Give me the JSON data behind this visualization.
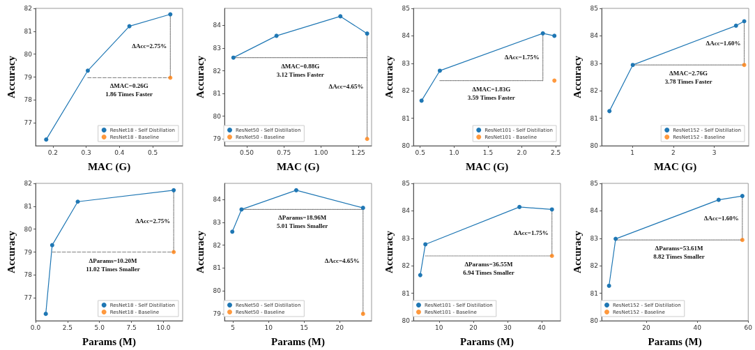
{
  "chart_data": [
    {
      "type": "line",
      "xlabel": "MAC (G)",
      "ylabel": "Accuracy",
      "xlim": [
        0.148,
        0.59
      ],
      "ylim": [
        76,
        82
      ],
      "xticks": [
        0.2,
        0.3,
        0.4,
        0.5
      ],
      "yticks": [
        77,
        78,
        79,
        80,
        81,
        82
      ],
      "grid": false,
      "legend": "bottom right",
      "marker": "circle",
      "series": [
        {
          "name": "ResNet18 - Self Distillation",
          "color": "#1f77b4",
          "x": [
            0.18,
            0.305,
            0.43,
            0.553
          ],
          "values": [
            76.27,
            79.28,
            81.22,
            81.74
          ]
        },
        {
          "type": "scatter",
          "name": "ResNet18 - Baseline",
          "color": "#ff7f0e",
          "x": [
            0.553
          ],
          "values": [
            78.97
          ]
        },
        {
          "color": "#808080",
          "line_style": "dashed",
          "marker": "none",
          "x": [
            0.305,
            0.553
          ],
          "values": [
            78.97,
            78.97
          ]
        },
        {
          "color": "#808080",
          "line_style": "dotted",
          "marker": "none",
          "x": [
            0.553,
            0.553
          ],
          "values": [
            81.74,
            78.97
          ]
        }
      ],
      "annotations": [
        "ΔMAC=0.26G\n1.86 Times Faster",
        "ΔAcc=2.75%"
      ]
    },
    {
      "type": "line",
      "xlabel": "MAC (G)",
      "ylabel": "Accuracy",
      "xlim": [
        0.35,
        1.34
      ],
      "ylim": [
        78.7,
        84.75
      ],
      "xticks": [
        {
          "value": 0.5,
          "label": "0.50"
        },
        0.75,
        {
          "value": 1,
          "label": "1.00"
        },
        1.25
      ],
      "yticks": [
        79,
        80,
        81,
        82,
        83,
        84
      ],
      "grid": false,
      "legend": "bottom left",
      "marker": "circle",
      "series": [
        {
          "name": "ResNet50 - Self Distillation",
          "color": "#1f77b4",
          "x": [
            0.41,
            0.7,
            1.13,
            1.31
          ],
          "values": [
            82.58,
            83.54,
            84.4,
            83.64
          ]
        },
        {
          "type": "scatter",
          "name": "ResNet50 - Baseline",
          "color": "#ff7f0e",
          "x": [
            1.31
          ],
          "values": [
            79
          ]
        },
        {
          "color": "#808080",
          "line_style": "dotted",
          "marker": "none",
          "x": [
            0.41,
            1.31
          ],
          "values": [
            82.58,
            82.58
          ]
        },
        {
          "color": "#808080",
          "line_style": "dotted",
          "marker": "none",
          "x": [
            1.31,
            1.31
          ],
          "values": [
            83.64,
            79
          ]
        }
      ],
      "annotations": [
        "ΔMAC=0.88G\n3.12 Times Faster",
        "ΔAcc=4.65%"
      ]
    },
    {
      "type": "line",
      "xlabel": "MAC (G)",
      "ylabel": "Accuracy",
      "xlim": [
        0.4,
        2.57
      ],
      "ylim": [
        80,
        85
      ],
      "xticks": [
        0.5,
        {
          "value": 1,
          "label": "1.0"
        },
        1.5,
        {
          "value": 2,
          "label": "2.0"
        },
        2.5
      ],
      "yticks": [
        80,
        81,
        82,
        83,
        84,
        85
      ],
      "grid": false,
      "legend": "bottom right",
      "marker": "circle",
      "series": [
        {
          "name": "ResNet101 - Self Distillation",
          "color": "#1f77b4",
          "x": [
            0.52,
            0.79,
            2.31,
            2.48
          ],
          "values": [
            81.64,
            82.73,
            84.09,
            84
          ]
        },
        {
          "type": "scatter",
          "name": "ResNet101 - Baseline",
          "color": "#ff7f0e",
          "x": [
            2.48
          ],
          "values": [
            82.37
          ]
        },
        {
          "color": "#808080",
          "line_style": "dotted",
          "marker": "none",
          "x": [
            0.79,
            2.31
          ],
          "values": [
            82.37,
            82.37
          ]
        },
        {
          "color": "#808080",
          "line_style": "dotted",
          "marker": "none",
          "x": [
            2.31,
            2.31
          ],
          "values": [
            84.09,
            82.37
          ]
        }
      ],
      "annotations": [
        "ΔMAC=1.83G\n3.59 Times Faster",
        "ΔAcc=1.75%"
      ]
    },
    {
      "type": "line",
      "xlabel": "MAC (G)",
      "ylabel": "Accuracy",
      "xlim": [
        0.25,
        3.84
      ],
      "ylim": [
        80,
        85
      ],
      "xticks": [
        1,
        2,
        3
      ],
      "yticks": [
        80,
        81,
        82,
        83,
        84,
        85
      ],
      "grid": false,
      "legend": "bottom right",
      "marker": "circle",
      "series": [
        {
          "name": "ResNet152 - Self Distillation",
          "color": "#1f77b4",
          "x": [
            0.44,
            1.01,
            3.53,
            3.73
          ],
          "values": [
            81.26,
            82.94,
            84.37,
            84.53
          ]
        },
        {
          "type": "scatter",
          "name": "ResNet152 - Baseline",
          "color": "#ff7f0e",
          "x": [
            3.73
          ],
          "values": [
            82.94
          ]
        },
        {
          "color": "#808080",
          "line_style": "dotted",
          "marker": "none",
          "x": [
            1.01,
            3.73
          ],
          "values": [
            82.94,
            82.94
          ]
        },
        {
          "color": "#808080",
          "line_style": "dotted",
          "marker": "none",
          "x": [
            3.73,
            3.73
          ],
          "values": [
            84.53,
            82.94
          ]
        }
      ],
      "annotations": [
        "ΔMAC=2.76G\n3.78 Times Faster",
        "ΔAcc=1.60%"
      ]
    },
    {
      "type": "line",
      "xlabel": "Params (M)",
      "ylabel": "Accuracy",
      "xlim": [
        0,
        11.5
      ],
      "ylim": [
        76,
        82
      ],
      "xticks": [
        {
          "value": 0,
          "label": "0.0"
        },
        2.5,
        {
          "value": 5,
          "label": "5.0"
        },
        7.5,
        {
          "value": 10,
          "label": "10.0"
        }
      ],
      "yticks": [
        77,
        78,
        79,
        80,
        81,
        82
      ],
      "grid": false,
      "legend": "bottom right",
      "marker": "circle",
      "series": [
        {
          "name": "ResNet18 - Self Distillation",
          "color": "#1f77b4",
          "x": [
            0.8,
            1.3,
            3.3,
            10.8
          ],
          "values": [
            76.3,
            79.3,
            81.2,
            81.7
          ]
        },
        {
          "type": "scatter",
          "name": "ResNet18 - Baseline",
          "color": "#ff7f0e",
          "x": [
            10.8
          ],
          "values": [
            79
          ]
        },
        {
          "color": "#808080",
          "line_style": "dashed",
          "marker": "none",
          "x": [
            1.3,
            10.8
          ],
          "values": [
            79,
            79
          ]
        },
        {
          "color": "#808080",
          "line_style": "dotted",
          "marker": "none",
          "x": [
            10.8,
            10.8
          ],
          "values": [
            81.7,
            79
          ]
        }
      ],
      "annotations": [
        "ΔParams=10.20M\n11.02 Times Smaller",
        "ΔAcc=2.75%"
      ]
    },
    {
      "type": "line",
      "xlabel": "Params (M)",
      "ylabel": "Accuracy",
      "xlim": [
        3.8,
        24.5
      ],
      "ylim": [
        78.7,
        84.7
      ],
      "xticks": [
        5,
        10,
        15,
        20
      ],
      "yticks": [
        79,
        80,
        81,
        82,
        83,
        84
      ],
      "grid": false,
      "legend": "bottom left",
      "marker": "circle",
      "series": [
        {
          "name": "ResNet50 - Self Distillation",
          "color": "#1f77b4",
          "x": [
            4.9,
            6.2,
            13.9,
            23.3
          ],
          "values": [
            82.59,
            83.56,
            84.4,
            83.63
          ]
        },
        {
          "type": "scatter",
          "name": "ResNet50 - Baseline",
          "color": "#ff7f0e",
          "x": [
            23.3
          ],
          "values": [
            79
          ]
        },
        {
          "color": "#808080",
          "line_style": "dotted",
          "marker": "none",
          "x": [
            6.2,
            23.3
          ],
          "values": [
            83.56,
            83.56
          ]
        },
        {
          "color": "#808080",
          "line_style": "dotted",
          "marker": "none",
          "x": [
            23.3,
            23.3
          ],
          "values": [
            83.63,
            79
          ]
        }
      ],
      "annotations": [
        "ΔParams=18.96M\n5.01 Times Smaller",
        "ΔAcc=4.65%"
      ]
    },
    {
      "type": "line",
      "xlabel": "Params (M)",
      "ylabel": "Accuracy",
      "xlim": [
        2.5,
        45.5
      ],
      "ylim": [
        80,
        85
      ],
      "xticks": [
        10,
        20,
        30,
        40
      ],
      "yticks": [
        80,
        81,
        82,
        83,
        84,
        85
      ],
      "grid": false,
      "legend": "bottom left",
      "marker": "circle",
      "series": [
        {
          "name": "ResNet101 - Self Distillation",
          "color": "#1f77b4",
          "x": [
            4.5,
            6,
            33.5,
            43
          ],
          "values": [
            81.66,
            82.78,
            84.14,
            84.05
          ]
        },
        {
          "type": "scatter",
          "name": "ResNet101 - Baseline",
          "color": "#ff7f0e",
          "x": [
            43
          ],
          "values": [
            82.36
          ]
        },
        {
          "color": "#808080",
          "line_style": "dotted",
          "marker": "none",
          "x": [
            6,
            43
          ],
          "values": [
            82.36,
            82.36
          ]
        },
        {
          "color": "#808080",
          "line_style": "dotted",
          "marker": "none",
          "x": [
            43,
            43
          ],
          "values": [
            84.05,
            82.36
          ]
        }
      ],
      "annotations": [
        "ΔParams=36.55M\n6.94 Times Smaller",
        "ΔAcc=1.75%"
      ]
    },
    {
      "type": "line",
      "xlabel": "Params (M)",
      "ylabel": "Accuracy",
      "xlim": [
        2.5,
        60
      ],
      "ylim": [
        80,
        85
      ],
      "xticks": [
        20,
        40,
        60
      ],
      "yticks": [
        80,
        81,
        82,
        83,
        84,
        85
      ],
      "grid": false,
      "legend": "bottom left",
      "marker": "circle",
      "series": [
        {
          "name": "ResNet152 - Self Distillation",
          "color": "#1f77b4",
          "x": [
            5.4,
            8,
            48.4,
            57.7
          ],
          "values": [
            81.27,
            82.98,
            84.4,
            84.54
          ]
        },
        {
          "type": "scatter",
          "name": "ResNet152 - Baseline",
          "color": "#ff7f0e",
          "x": [
            57.7
          ],
          "values": [
            82.94
          ]
        },
        {
          "color": "#808080",
          "line_style": "dotted",
          "marker": "none",
          "x": [
            8,
            57.7
          ],
          "values": [
            82.94,
            82.94
          ]
        },
        {
          "color": "#808080",
          "line_style": "dotted",
          "marker": "none",
          "x": [
            57.7,
            57.7
          ],
          "values": [
            84.54,
            82.94
          ]
        }
      ],
      "annotations": [
        "ΔParams=53.61M\n8.82 Times Smaller",
        "ΔAcc=1.60%"
      ]
    }
  ]
}
